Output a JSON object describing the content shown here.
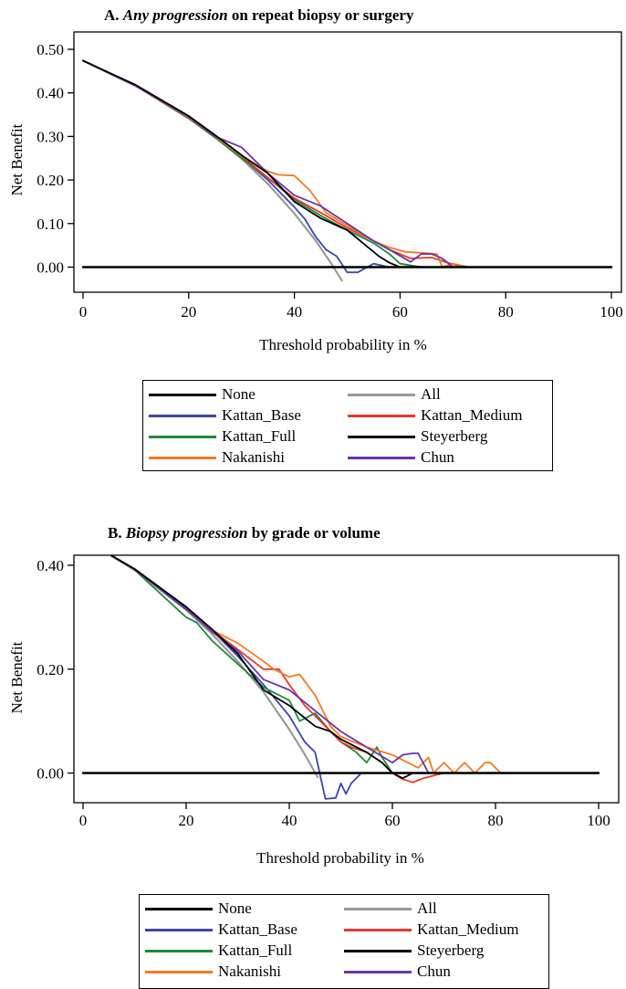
{
  "panels": [
    {
      "title_prefix": "A. ",
      "title_italic": "Any progression",
      "title_suffix": " on repeat biopsy or surgery"
    },
    {
      "title_prefix": "B. ",
      "title_italic": "Biopsy progression",
      "title_suffix": " by grade or volume"
    }
  ],
  "legend": [
    {
      "name": "None",
      "color": "#000000"
    },
    {
      "name": "All",
      "color": "#9a9a9a"
    },
    {
      "name": "Kattan_Base",
      "color": "#3b45b0"
    },
    {
      "name": "Kattan_Medium",
      "color": "#e8372a"
    },
    {
      "name": "Kattan_Full",
      "color": "#1e8a3c"
    },
    {
      "name": "Steyerberg",
      "color": "#000000"
    },
    {
      "name": "Nakanishi",
      "color": "#f47a20"
    },
    {
      "name": "Chun",
      "color": "#6a35a8"
    }
  ],
  "chart_data": [
    {
      "type": "line",
      "title": "A. Any progression on repeat biopsy or surgery",
      "xlabel": "Threshold probability in %",
      "ylabel": "Net Benefit",
      "xlim": [
        0,
        100
      ],
      "ylim": [
        -0.055,
        0.51
      ],
      "xticks": [
        0,
        20,
        40,
        60,
        80,
        100
      ],
      "yticks": [
        0.0,
        0.1,
        0.2,
        0.3,
        0.4,
        0.5
      ],
      "ytick_labels": [
        "0.00",
        "0.10",
        "0.20",
        "0.30",
        "0.40",
        "0.50"
      ],
      "series": [
        {
          "name": "None",
          "color": "#000000",
          "x": [
            0,
            100
          ],
          "y": [
            0,
            0
          ]
        },
        {
          "name": "All",
          "color": "#9a9a9a",
          "x": [
            0,
            10,
            20,
            25,
            30,
            35,
            40,
            44,
            47,
            49
          ],
          "y": [
            0.474,
            0.416,
            0.343,
            0.299,
            0.249,
            0.191,
            0.123,
            0.061,
            0.008,
            -0.031
          ]
        },
        {
          "name": "Kattan_Base",
          "color": "#3b45b0",
          "x": [
            0,
            10,
            20,
            25,
            30,
            35,
            40,
            42,
            44,
            46,
            48,
            50,
            52,
            55,
            58,
            62,
            66,
            70,
            100
          ],
          "y": [
            0.474,
            0.417,
            0.344,
            0.3,
            0.252,
            0.2,
            0.138,
            0.11,
            0.07,
            0.04,
            0.025,
            -0.012,
            -0.012,
            0.008,
            0.0,
            0.0,
            0.0,
            0.0,
            0.0
          ]
        },
        {
          "name": "Kattan_Medium",
          "color": "#e8372a",
          "x": [
            0,
            10,
            20,
            25,
            30,
            35,
            40,
            45,
            50,
            55,
            58,
            62,
            66,
            69,
            72,
            100
          ],
          "y": [
            0.474,
            0.416,
            0.343,
            0.3,
            0.255,
            0.205,
            0.158,
            0.125,
            0.09,
            0.06,
            0.04,
            0.02,
            0.022,
            0.01,
            0.0,
            0.0
          ]
        },
        {
          "name": "Kattan_Full",
          "color": "#1e8a3c",
          "x": [
            0,
            10,
            20,
            25,
            30,
            35,
            40,
            45,
            50,
            55,
            58,
            60,
            64,
            100
          ],
          "y": [
            0.474,
            0.416,
            0.341,
            0.297,
            0.25,
            0.205,
            0.155,
            0.118,
            0.085,
            0.055,
            0.03,
            0.008,
            0.0,
            0.0
          ]
        },
        {
          "name": "Steyerberg",
          "color": "#000000",
          "x": [
            0,
            10,
            20,
            25,
            30,
            35,
            40,
            45,
            50,
            53,
            56,
            58,
            60,
            100
          ],
          "y": [
            0.474,
            0.418,
            0.347,
            0.303,
            0.257,
            0.215,
            0.15,
            0.112,
            0.085,
            0.055,
            0.025,
            0.01,
            0.0,
            0.0
          ]
        },
        {
          "name": "Nakanishi",
          "color": "#f47a20",
          "x": [
            0,
            10,
            20,
            25,
            30,
            35,
            37,
            40,
            43,
            46,
            50,
            55,
            58,
            61,
            65,
            67,
            68,
            70,
            73,
            100
          ],
          "y": [
            0.474,
            0.417,
            0.344,
            0.3,
            0.255,
            0.22,
            0.212,
            0.21,
            0.175,
            0.125,
            0.095,
            0.06,
            0.045,
            0.035,
            0.032,
            0.03,
            0.0,
            0.008,
            0.0,
            0.0
          ]
        },
        {
          "name": "Chun",
          "color": "#6a35a8",
          "x": [
            0,
            10,
            20,
            25,
            28,
            30,
            35,
            40,
            45,
            50,
            55,
            58,
            62,
            64,
            66,
            68,
            70,
            100
          ],
          "y": [
            0.474,
            0.416,
            0.345,
            0.3,
            0.285,
            0.275,
            0.215,
            0.165,
            0.14,
            0.1,
            0.06,
            0.04,
            0.012,
            0.03,
            0.03,
            0.02,
            0.0,
            0.0
          ]
        }
      ]
    },
    {
      "type": "line",
      "title": "B. Biopsy progression by grade or volume",
      "xlabel": "Threshold probability in %",
      "ylabel": "Net Benefit",
      "xlim": [
        0,
        100
      ],
      "ylim": [
        -0.075,
        0.48
      ],
      "xticks": [
        0,
        20,
        40,
        60,
        80,
        100
      ],
      "yticks": [
        0.0,
        0.2,
        0.4
      ],
      "ytick_labels": [
        "0.00",
        "0.20",
        "0.40"
      ],
      "series": [
        {
          "name": "None",
          "color": "#000000",
          "x": [
            0,
            100
          ],
          "y": [
            0,
            0
          ]
        },
        {
          "name": "All",
          "color": "#9a9a9a",
          "x": [
            0,
            10,
            20,
            25,
            30,
            35,
            40,
            43,
            45.5
          ],
          "y": [
            0.451,
            0.391,
            0.314,
            0.268,
            0.215,
            0.156,
            0.084,
            0.036,
            -0.008
          ]
        },
        {
          "name": "Kattan_Base",
          "color": "#3b45b0",
          "x": [
            0,
            10,
            20,
            25,
            30,
            35,
            40,
            43,
            45,
            47,
            49,
            50,
            51,
            52,
            54,
            56,
            60,
            100
          ],
          "y": [
            0.451,
            0.392,
            0.315,
            0.275,
            0.225,
            0.17,
            0.11,
            0.06,
            0.04,
            -0.05,
            -0.048,
            -0.02,
            -0.04,
            -0.02,
            0.0,
            0.0,
            0.0,
            0.0
          ]
        },
        {
          "name": "Kattan_Medium",
          "color": "#e8372a",
          "x": [
            0,
            10,
            20,
            25,
            30,
            35,
            38,
            40,
            43,
            45,
            48,
            50,
            52,
            55,
            58,
            60,
            62,
            64,
            66,
            70,
            100
          ],
          "y": [
            0.451,
            0.392,
            0.318,
            0.275,
            0.238,
            0.2,
            0.2,
            0.17,
            0.13,
            0.11,
            0.08,
            0.06,
            0.05,
            0.04,
            0.02,
            0.0,
            -0.012,
            -0.018,
            -0.01,
            0.0,
            0.0
          ]
        },
        {
          "name": "Kattan_Full",
          "color": "#1e8a3c",
          "x": [
            0,
            10,
            20,
            22,
            25,
            30,
            35,
            40,
            42,
            45,
            48,
            50,
            53,
            55,
            57,
            58,
            60,
            100
          ],
          "y": [
            0.451,
            0.391,
            0.3,
            0.29,
            0.255,
            0.21,
            0.165,
            0.14,
            0.1,
            0.115,
            0.08,
            0.06,
            0.04,
            0.02,
            0.05,
            0.03,
            0.0,
            0.0
          ]
        },
        {
          "name": "Steyerberg",
          "color": "#000000",
          "x": [
            0,
            10,
            20,
            25,
            30,
            35,
            40,
            45,
            48,
            50,
            55,
            58,
            60,
            62,
            64,
            100
          ],
          "y": [
            0.451,
            0.393,
            0.32,
            0.277,
            0.23,
            0.16,
            0.13,
            0.09,
            0.08,
            0.065,
            0.04,
            0.02,
            0.0,
            -0.01,
            0.0,
            0.0
          ]
        },
        {
          "name": "Nakanishi",
          "color": "#f47a20",
          "x": [
            0,
            10,
            20,
            25,
            30,
            35,
            37,
            40,
            42,
            45,
            48,
            50,
            55,
            60,
            65,
            67,
            68,
            70,
            72,
            74,
            76,
            78,
            79,
            81,
            82,
            83,
            100
          ],
          "y": [
            0.451,
            0.392,
            0.317,
            0.275,
            0.25,
            0.215,
            0.2,
            0.185,
            0.19,
            0.15,
            0.09,
            0.07,
            0.05,
            0.035,
            0.01,
            0.03,
            0.0,
            0.02,
            0.0,
            0.02,
            0.0,
            0.02,
            0.02,
            0.0,
            0.0,
            0.0,
            0.0
          ]
        },
        {
          "name": "Chun",
          "color": "#6a35a8",
          "x": [
            0,
            10,
            20,
            25,
            30,
            35,
            40,
            45,
            50,
            55,
            60,
            62,
            64,
            65,
            67,
            100
          ],
          "y": [
            0.451,
            0.392,
            0.316,
            0.272,
            0.235,
            0.18,
            0.16,
            0.12,
            0.08,
            0.05,
            0.02,
            0.035,
            0.038,
            0.038,
            0.0,
            0.0
          ]
        }
      ]
    }
  ]
}
